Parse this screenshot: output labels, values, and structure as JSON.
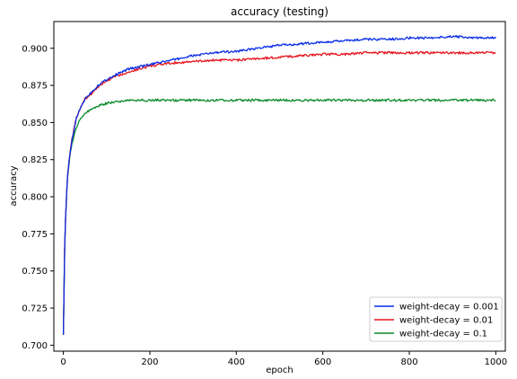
{
  "chart_data": {
    "type": "line",
    "title": "accuracy (testing)",
    "xlabel": "epoch",
    "ylabel": "accuracy",
    "xlim": [
      -22,
      1022
    ],
    "ylim": [
      0.696,
      0.918
    ],
    "xticks": [
      0,
      200,
      400,
      600,
      800,
      1000
    ],
    "xtick_labels": [
      "0",
      "200",
      "400",
      "600",
      "800",
      "1000"
    ],
    "yticks": [
      0.7,
      0.725,
      0.75,
      0.775,
      0.8,
      0.825,
      0.85,
      0.875,
      0.9
    ],
    "ytick_labels": [
      "0.700",
      "0.725",
      "0.750",
      "0.775",
      "0.800",
      "0.825",
      "0.850",
      "0.875",
      "0.900"
    ],
    "grid": false,
    "legend_position": "lower-right",
    "series": [
      {
        "name": "weight-decay = 0.001",
        "color": "#0a2ee6",
        "x": [
          0,
          3,
          5,
          8,
          10,
          15,
          20,
          30,
          40,
          50,
          60,
          80,
          100,
          120,
          150,
          200,
          250,
          300,
          350,
          400,
          450,
          500,
          550,
          600,
          650,
          700,
          750,
          800,
          850,
          900,
          950,
          1000
        ],
        "y": [
          0.707,
          0.765,
          0.785,
          0.805,
          0.815,
          0.828,
          0.838,
          0.853,
          0.86,
          0.866,
          0.869,
          0.875,
          0.879,
          0.882,
          0.886,
          0.889,
          0.892,
          0.895,
          0.897,
          0.898,
          0.9,
          0.902,
          0.903,
          0.904,
          0.905,
          0.906,
          0.906,
          0.907,
          0.907,
          0.908,
          0.907,
          0.907
        ]
      },
      {
        "name": "weight-decay = 0.01",
        "color": "#e6141e",
        "x": [
          0,
          3,
          5,
          8,
          10,
          15,
          20,
          30,
          40,
          50,
          60,
          80,
          100,
          120,
          150,
          200,
          250,
          300,
          350,
          400,
          450,
          500,
          550,
          600,
          650,
          700,
          750,
          800,
          850,
          900,
          950,
          1000
        ],
        "y": [
          0.707,
          0.765,
          0.785,
          0.805,
          0.815,
          0.829,
          0.839,
          0.853,
          0.86,
          0.866,
          0.868,
          0.874,
          0.878,
          0.881,
          0.884,
          0.888,
          0.89,
          0.891,
          0.892,
          0.892,
          0.893,
          0.894,
          0.895,
          0.896,
          0.896,
          0.897,
          0.897,
          0.897,
          0.897,
          0.897,
          0.897,
          0.897
        ]
      },
      {
        "name": "weight-decay = 0.1",
        "color": "#0a8a2a",
        "x": [
          0,
          3,
          5,
          8,
          10,
          15,
          20,
          30,
          40,
          50,
          60,
          80,
          100,
          120,
          150,
          200,
          250,
          300,
          350,
          400,
          450,
          500,
          550,
          600,
          650,
          700,
          750,
          800,
          850,
          900,
          950,
          1000
        ],
        "y": [
          0.707,
          0.765,
          0.785,
          0.804,
          0.814,
          0.827,
          0.836,
          0.847,
          0.853,
          0.856,
          0.858,
          0.861,
          0.863,
          0.864,
          0.865,
          0.865,
          0.865,
          0.865,
          0.865,
          0.865,
          0.865,
          0.865,
          0.865,
          0.865,
          0.865,
          0.865,
          0.865,
          0.865,
          0.865,
          0.865,
          0.865,
          0.865
        ]
      }
    ]
  }
}
